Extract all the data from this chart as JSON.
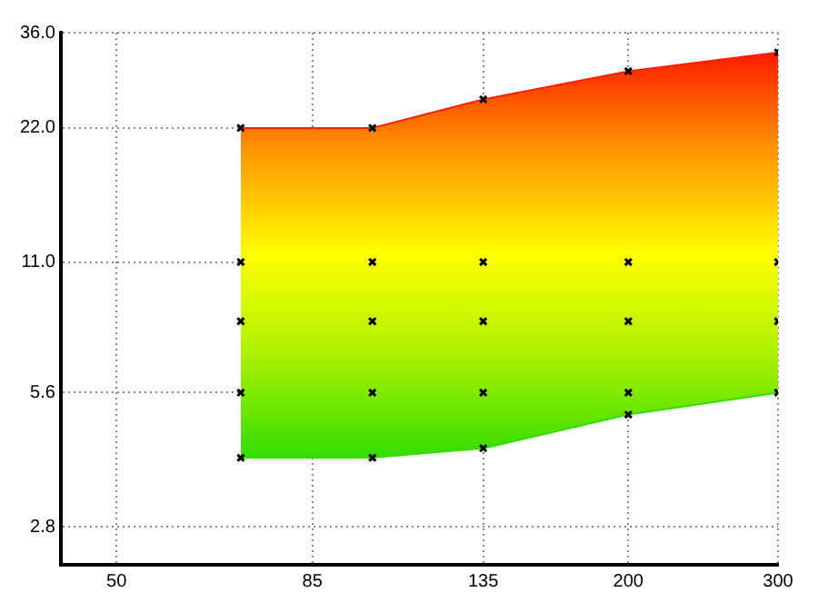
{
  "chart_data": {
    "type": "area",
    "log": "xy",
    "grid": true,
    "legend": false,
    "xlim": [
      43,
      300
    ],
    "ylim": [
      2.3,
      36
    ],
    "xticks": [
      50,
      85,
      135,
      200,
      300
    ],
    "yticks": [
      2.8,
      5.6,
      {
        "value": 11,
        "label": "11.0"
      },
      {
        "value": 22,
        "label": "22.0"
      },
      {
        "value": 36,
        "label": "36.0"
      }
    ],
    "series": [
      {
        "x": [
          70,
          100,
          135,
          200,
          300
        ],
        "values": [
          22,
          22,
          25.5,
          29.5,
          32.5
        ],
        "color": "#ff2000",
        "colors": [
          "#ff1a00",
          "#ff9a00",
          "#ffff00",
          "#aaf000",
          "#33dd00"
        ]
      },
      {
        "type": "line",
        "x": [
          70,
          100,
          135,
          200,
          300
        ],
        "values": [
          4.0,
          4.0,
          4.2,
          5.0,
          5.6
        ],
        "color": "#33dd00"
      },
      {
        "type": "scatter",
        "marker": "cross",
        "color": "#000000",
        "x": [
          70,
          70,
          70,
          70,
          70,
          100,
          100,
          100,
          100,
          100,
          135,
          135,
          135,
          135,
          135,
          200,
          200,
          200,
          200,
          200,
          300,
          300,
          300,
          300
        ],
        "values": [
          22,
          11,
          8.1,
          5.6,
          4.0,
          22,
          11,
          8.1,
          5.6,
          4.0,
          25.5,
          11,
          8.1,
          5.6,
          4.2,
          29.5,
          11,
          8.1,
          5.6,
          5.0,
          32.5,
          11,
          8.1,
          5.6
        ]
      }
    ]
  }
}
